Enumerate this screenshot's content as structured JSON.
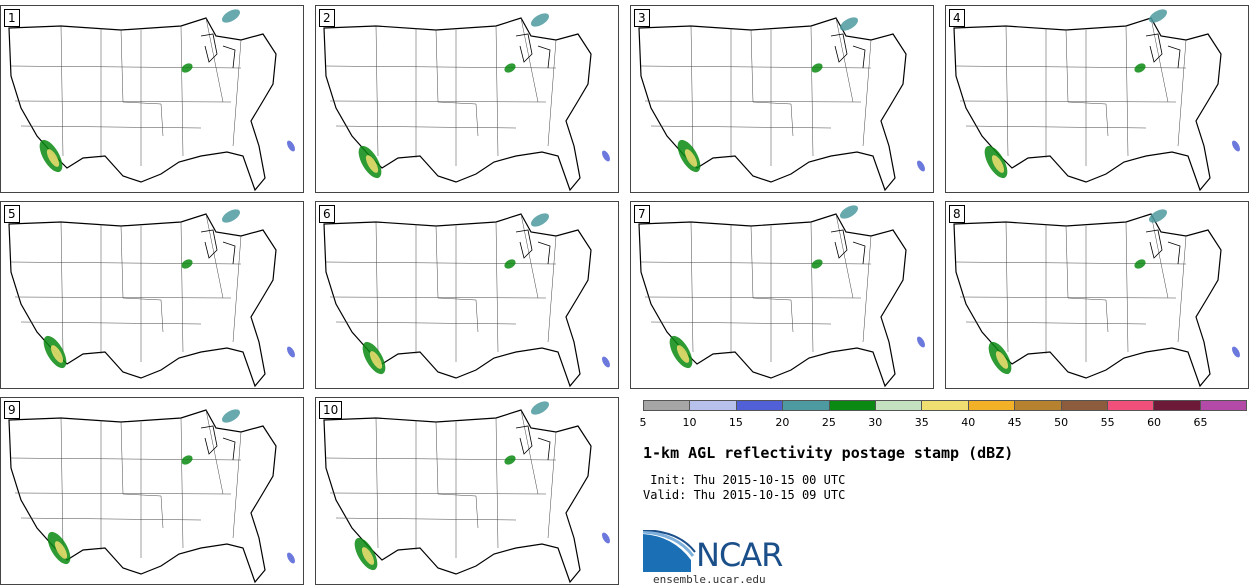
{
  "panels": [
    {
      "label": "1"
    },
    {
      "label": "2"
    },
    {
      "label": "3"
    },
    {
      "label": "4"
    },
    {
      "label": "5"
    },
    {
      "label": "6"
    },
    {
      "label": "7"
    },
    {
      "label": "8"
    },
    {
      "label": "9"
    },
    {
      "label": "10"
    }
  ],
  "colorbar": {
    "colors": [
      "#a6a6a6",
      "#b7c1ec",
      "#5160d6",
      "#4d9aa0",
      "#0a8a12",
      "#c5e2c0",
      "#f0df70",
      "#f2b126",
      "#b7822f",
      "#8c5c3c",
      "#f0507a",
      "#6c1a38",
      "#b44aa8"
    ],
    "labels": [
      "5",
      "10",
      "15",
      "20",
      "25",
      "30",
      "35",
      "40",
      "45",
      "50",
      "55",
      "60",
      "65"
    ]
  },
  "title": "1-km AGL reflectivity postage stamp (dBZ)",
  "init": " Init: Thu 2015-10-15 00 UTC",
  "valid": "Valid: Thu 2015-10-15 09 UTC",
  "logo": {
    "text": "NCAR"
  },
  "url": "ensemble.ucar.edu"
}
